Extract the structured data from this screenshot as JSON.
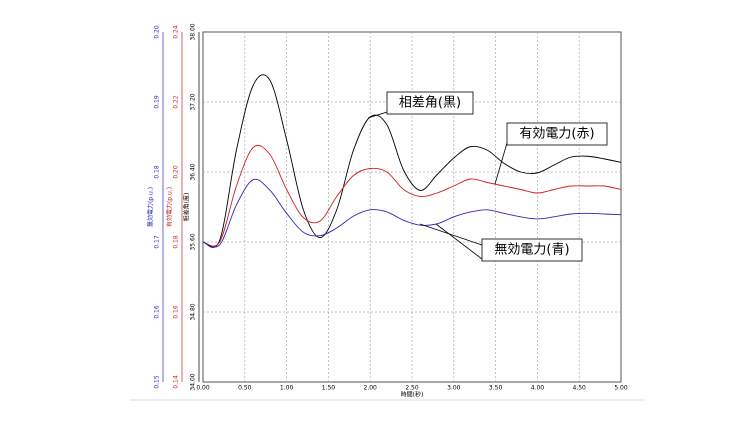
{
  "chart_data": {
    "type": "line",
    "x_label": "時間(秒)",
    "y_label": "相差角(度)",
    "y2_label": "有効電力(p.u.)",
    "y3_label": "無効電力(p.u.)",
    "x": [
      0,
      0.2,
      0.4,
      0.6,
      0.8,
      1.0,
      1.2,
      1.4,
      1.6,
      1.8,
      2.0,
      2.2,
      2.4,
      2.6,
      2.8,
      3.0,
      3.2,
      3.4,
      3.6,
      3.8,
      4.0,
      4.2,
      4.4,
      4.6,
      4.8,
      5.0
    ],
    "xlim": [
      0,
      5
    ],
    "xticks": [
      {
        "value": 0,
        "label": "0.00"
      },
      {
        "value": 0.5,
        "label": "0.50"
      },
      {
        "value": 1,
        "label": "1.00"
      },
      {
        "value": 1.5,
        "label": "1.50"
      },
      {
        "value": 2,
        "label": "2.00"
      },
      {
        "value": 2.5,
        "label": "2.50"
      },
      {
        "value": 3,
        "label": "3.00"
      },
      {
        "value": 3.5,
        "label": "3.50"
      },
      {
        "value": 4,
        "label": "4.00"
      },
      {
        "value": 4.5,
        "label": "4.50"
      },
      {
        "value": 5,
        "label": "5.00"
      }
    ],
    "ylim": [
      34,
      38
    ],
    "yticks": [
      {
        "value": 34,
        "label": "34.00"
      },
      {
        "value": 34.8,
        "label": "34.80"
      },
      {
        "value": 35.6,
        "label": "35.60"
      },
      {
        "value": 36.4,
        "label": "36.40"
      },
      {
        "value": 37.2,
        "label": "37.20"
      },
      {
        "value": 38,
        "label": "38.00"
      }
    ],
    "y2lim": [
      0.14,
      0.24
    ],
    "y2ticks": [
      0.14,
      0.16,
      0.18,
      {
        "value": 0.2,
        "label": "0.20"
      },
      0.22,
      0.24
    ],
    "y3lim": [
      0.15,
      0.2
    ],
    "y3ticks": [
      0.15,
      0.16,
      0.17,
      0.18,
      0.19,
      {
        "value": 0.2,
        "label": "0.20"
      }
    ],
    "grid": true,
    "series": [
      {
        "name": "相差角",
        "color": "#000000",
        "axis": "y",
        "values": [
          35.6,
          35.62,
          36.65,
          37.39,
          37.45,
          36.77,
          35.97,
          35.65,
          35.97,
          36.65,
          37.03,
          36.94,
          36.42,
          36.19,
          36.37,
          36.56,
          36.69,
          36.65,
          36.5,
          36.4,
          36.39,
          36.48,
          36.57,
          36.58,
          36.55,
          36.51
        ]
      },
      {
        "name": "有効電力",
        "color": "#d02020",
        "axis": "y2",
        "values": [
          0.18,
          0.18,
          0.196,
          0.207,
          0.205,
          0.195,
          0.187,
          0.186,
          0.193,
          0.199,
          0.201,
          0.2,
          0.195,
          0.193,
          0.194,
          0.196,
          0.198,
          0.197,
          0.196,
          0.195,
          0.194,
          0.195,
          0.196,
          0.196,
          0.196,
          0.195
        ]
      },
      {
        "name": "無効電力",
        "color": "#2a2ab8",
        "axis": "y3",
        "values": [
          0.17,
          0.1696,
          0.1753,
          0.1789,
          0.1774,
          0.1741,
          0.1714,
          0.1709,
          0.172,
          0.1737,
          0.1746,
          0.1743,
          0.1731,
          0.1724,
          0.1726,
          0.1736,
          0.1743,
          0.1746,
          0.1741,
          0.1736,
          0.1733,
          0.1736,
          0.174,
          0.1741,
          0.174,
          0.1739
        ]
      }
    ],
    "annotations": [
      "相差角(黒)",
      "有効電力(赤)",
      "無効電力(青)"
    ]
  }
}
